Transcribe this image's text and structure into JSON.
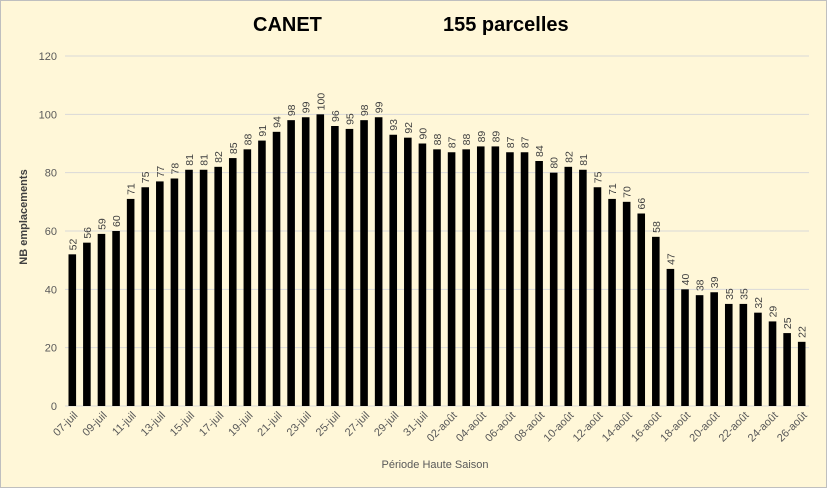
{
  "chart_data": {
    "type": "bar",
    "title_left": "CANET",
    "title_right": "155 parcelles",
    "xlabel": "Période Haute Saison",
    "ylabel": "NB emplacements",
    "ylim": [
      0,
      120
    ],
    "yticks": [
      0,
      20,
      40,
      60,
      80,
      100,
      120
    ],
    "grid": "horizontal",
    "legend": "none",
    "bar_color": "#000000",
    "gridline_color": "#d9d9d9",
    "x_tick_labels": [
      "07-juil",
      "09-juil",
      "11-juil",
      "13-juil",
      "15-juil",
      "17-juil",
      "19-juil",
      "21-juil",
      "23-juil",
      "25-juil",
      "27-juil",
      "29-juil",
      "31-juil",
      "02-août",
      "04-août",
      "06-août",
      "08-août",
      "10-août",
      "12-août",
      "14-août",
      "16-août",
      "18-août",
      "20-août",
      "22-août",
      "24-août",
      "26-août"
    ],
    "values": [
      52,
      56,
      59,
      60,
      71,
      75,
      77,
      78,
      81,
      81,
      82,
      85,
      88,
      91,
      94,
      98,
      99,
      100,
      96,
      95,
      98,
      99,
      93,
      92,
      90,
      88,
      87,
      88,
      89,
      89,
      87,
      87,
      84,
      80,
      82,
      81,
      75,
      71,
      70,
      66,
      58,
      47,
      40,
      38,
      39,
      35,
      35,
      32,
      29,
      25,
      22
    ]
  }
}
